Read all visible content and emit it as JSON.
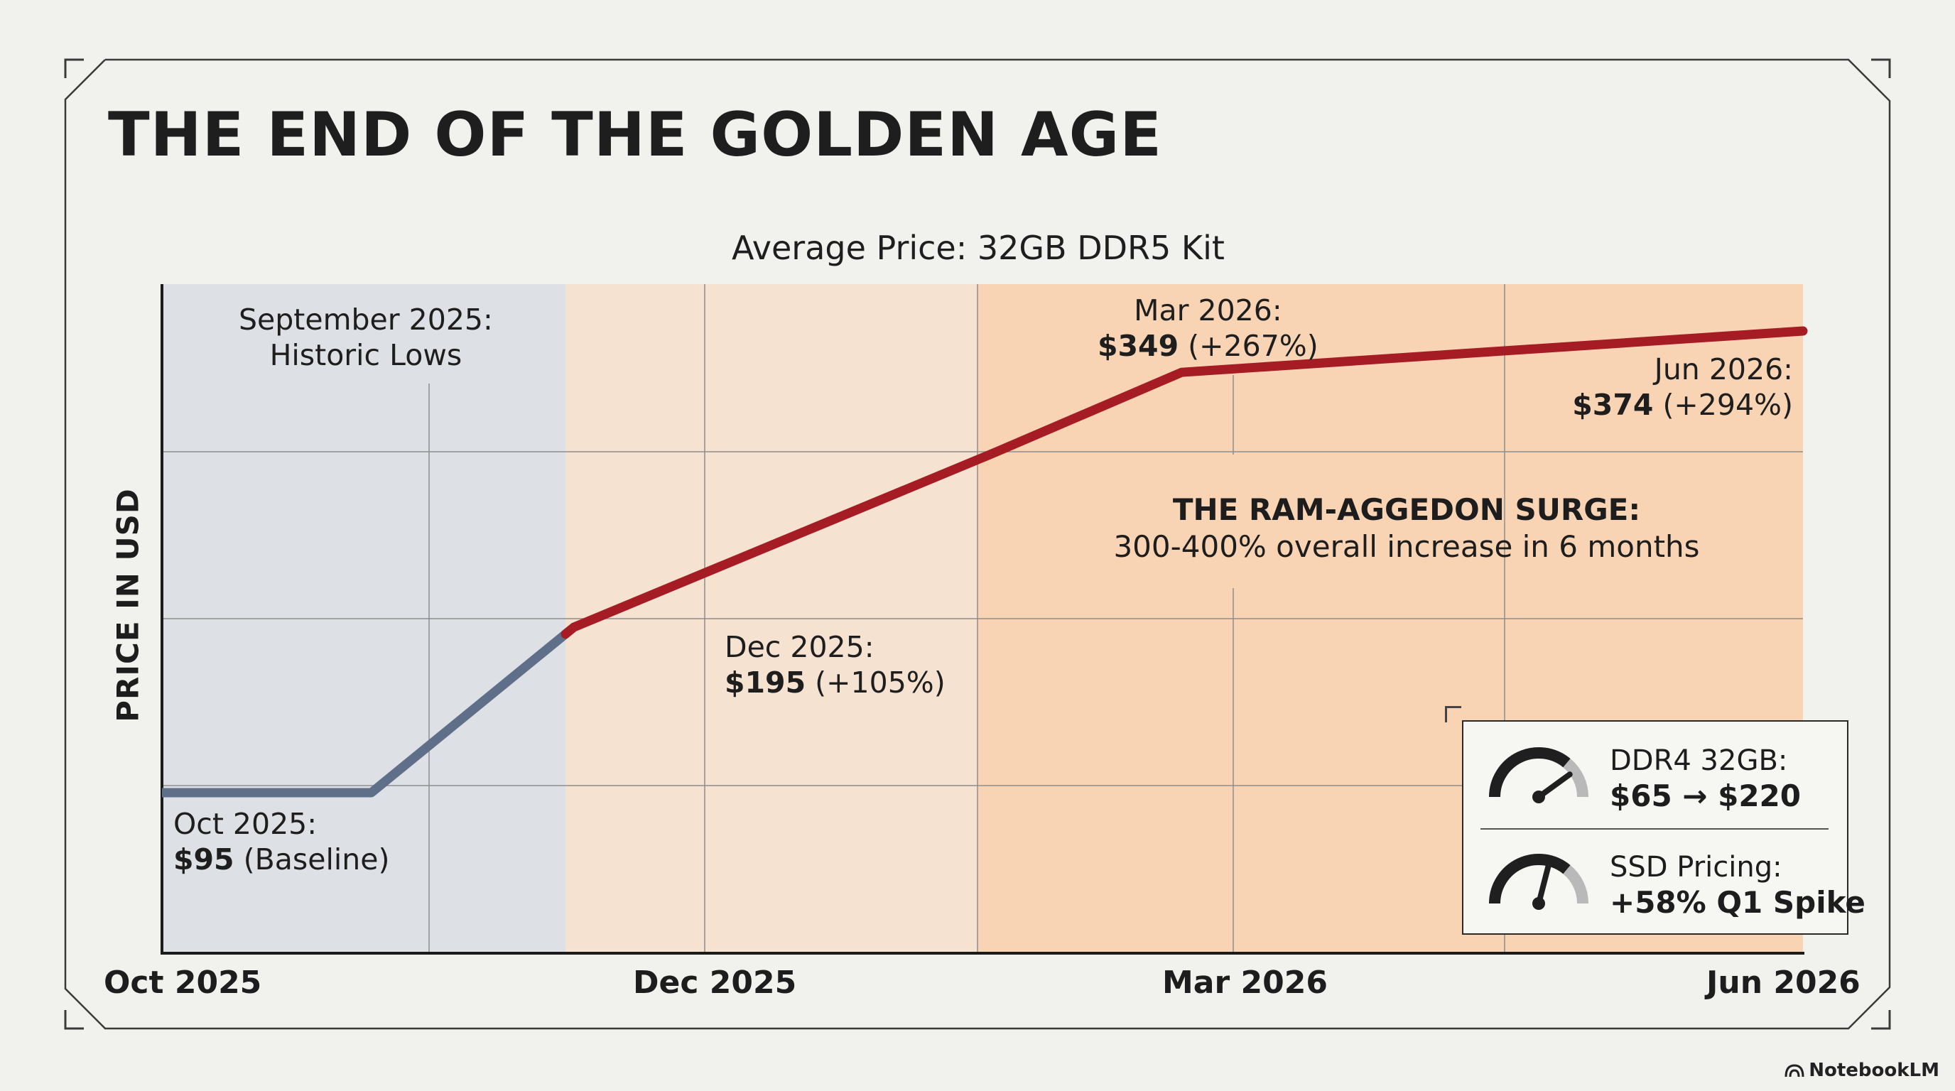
{
  "title": "THE END OF THE GOLDEN AGE",
  "colors": {
    "background": "#f1f1ed",
    "baseline_region": "#dde0e4",
    "mid_region": "#f6e2d0",
    "surge_region": "#f9d4b4",
    "baseline_line": "#5f6f8a",
    "surge_line": "#a51c24"
  },
  "chart_data": {
    "type": "line",
    "title": "Average Price: 32GB DDR5 Kit",
    "xlabel": "",
    "ylabel": "PRICE IN USD",
    "x_ticks": [
      "Oct 2025",
      "Dec 2025",
      "Mar 2026",
      "Jun 2026"
    ],
    "grid": true,
    "points": [
      {
        "x": "2025-10-01",
        "y": 95
      },
      {
        "x": "2025-11-01",
        "y": 95
      },
      {
        "x": "2025-12-01",
        "y": 195
      },
      {
        "x": "2026-02-01",
        "y": 300
      },
      {
        "x": "2026-03-01",
        "y": 349
      },
      {
        "x": "2026-06-01",
        "y": 374
      }
    ],
    "annotations": [
      {
        "id": "baseline",
        "label": "Oct 2025:",
        "value": "$95",
        "detail": "(Baseline)"
      },
      {
        "id": "dec",
        "label": "Dec 2025:",
        "value": "$195",
        "detail": "(+105%)"
      },
      {
        "id": "mar",
        "label": "Mar 2026:",
        "value": "$349",
        "detail": "(+267%)"
      },
      {
        "id": "jun",
        "label": "Jun 2026:",
        "value": "$374",
        "detail": "(+294%)"
      }
    ],
    "regions": [
      {
        "id": "historic",
        "line1": "September 2025:",
        "line2": "Historic Lows"
      }
    ],
    "surge": {
      "title": "THE RAM-AGGEDON SURGE:",
      "description": "300-400% overall increase in 6 months"
    }
  },
  "side_card": [
    {
      "label": "DDR4 32GB:",
      "value": "$65 → $220",
      "gauge_level": 0.8,
      "icon": "gauge-icon"
    },
    {
      "label": "SSD Pricing:",
      "value": "+58% Q1 Spike",
      "gauge_level": 0.58,
      "icon": "gauge-icon"
    }
  ],
  "brand": "NotebookLM"
}
